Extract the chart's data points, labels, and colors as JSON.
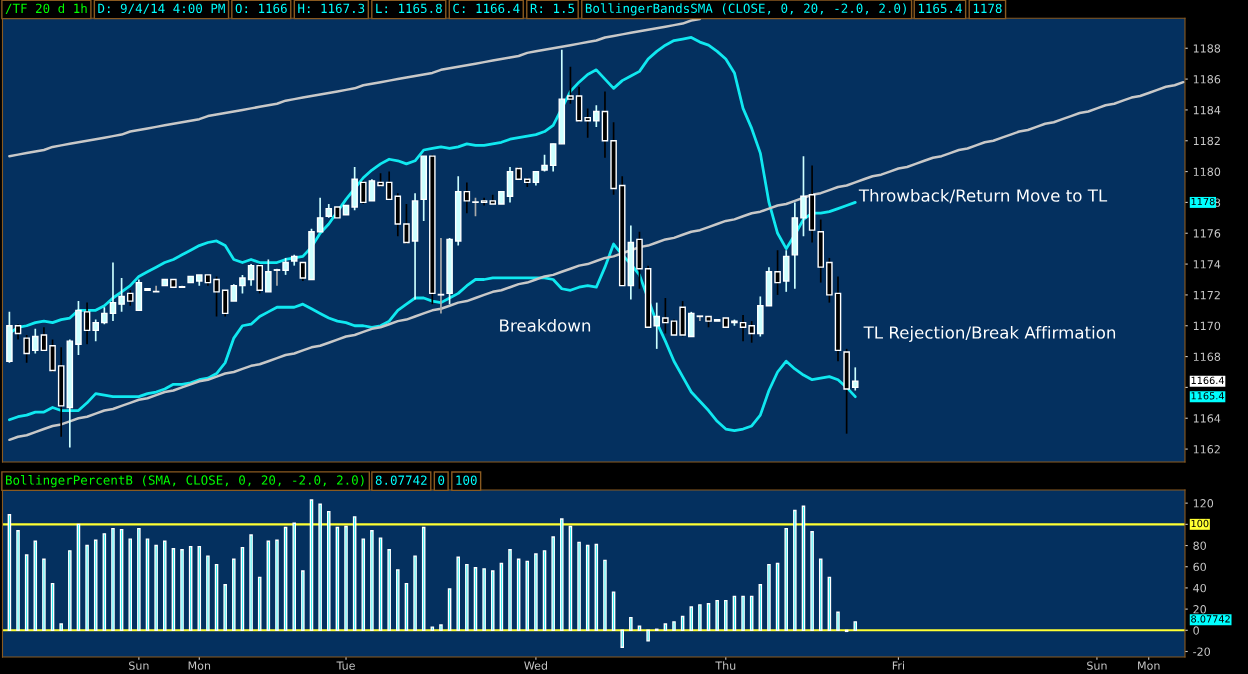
{
  "chart_data": [
    {
      "type": "candlestick",
      "annotations": [
        "/TF 20 d 1h",
        "D: 9/4/14 4:00 PM",
        "O: 1166",
        "H: 1167.3",
        "L: 1165.8",
        "C: 1166.4",
        "R: 1.5",
        "BollingerBandsSMA (CLOSE, 0, 20, -2.0, 2.0)",
        "1165.4",
        "1178",
        "Breakdown",
        "Throwback/Return Move to TL",
        "TL Rejection/Break Affirmation",
        "1178",
        "1166.4",
        "1165.4"
      ],
      "categories": [
        null,
        null,
        null,
        null,
        null,
        null,
        null,
        null,
        null,
        null,
        null,
        null,
        null,
        null,
        null,
        null,
        null,
        null,
        null,
        null,
        null,
        null,
        null,
        null,
        null,
        null,
        null,
        null,
        null,
        null,
        null,
        null,
        null,
        null,
        null,
        null,
        null,
        null,
        null,
        null,
        null,
        null,
        null,
        null,
        null,
        null,
        null,
        null,
        null,
        null,
        null,
        null,
        null,
        null,
        null,
        null,
        null,
        null,
        null,
        null,
        null,
        null,
        null,
        null,
        null,
        null,
        null,
        null,
        null,
        null,
        null,
        null,
        null,
        null,
        null,
        null,
        null,
        null,
        null,
        null,
        null,
        null,
        null,
        null,
        null,
        null,
        null,
        null,
        null,
        null,
        null,
        null,
        null,
        null,
        null,
        null,
        null,
        null,
        null,
        null,
        null,
        null,
        null,
        null,
        null,
        null,
        null,
        null,
        null,
        null,
        null,
        null,
        null,
        null,
        null,
        null,
        null,
        null,
        null,
        null,
        null,
        null,
        null,
        null,
        null,
        null,
        null,
        null,
        null,
        null,
        null,
        null,
        null,
        null,
        null,
        null,
        null
      ],
      "ohlc": [
        [
          1167.7,
          1170.9,
          1167.6,
          1170.0
        ],
        [
          1170.0,
          1170.1,
          1169.1,
          1169.5
        ],
        [
          1169.2,
          1169.4,
          1167.6,
          1168.2
        ],
        [
          1168.4,
          1169.8,
          1168.2,
          1169.3
        ],
        [
          1169.4,
          1169.9,
          1168.4,
          1168.4
        ],
        [
          1168.7,
          1169.1,
          1167.0,
          1167.1
        ],
        [
          1167.4,
          1168.6,
          1162.8,
          1164.8
        ],
        [
          1164.7,
          1169.1,
          1162.1,
          1169.0
        ],
        [
          1168.8,
          1171.6,
          1168.1,
          1171.0
        ],
        [
          1170.9,
          1171.5,
          1168.8,
          1169.7
        ],
        [
          1169.7,
          1170.4,
          1169.0,
          1170.2
        ],
        [
          1170.2,
          1171.2,
          1170.1,
          1170.8
        ],
        [
          1170.8,
          1174.1,
          1170.3,
          1171.5
        ],
        [
          1171.4,
          1173.1,
          1170.9,
          1171.9
        ],
        [
          1172.1,
          1172.3,
          1171.3,
          1171.6
        ],
        [
          1171.0,
          1173.0,
          1171.0,
          1172.8
        ],
        [
          1172.3,
          1172.4,
          1172.3,
          1172.4
        ],
        [
          1172.2,
          1172.6,
          1172.2,
          1172.2
        ],
        [
          1172.6,
          1173.0,
          1172.6,
          1173.0
        ],
        [
          1173.0,
          1173.0,
          1172.5,
          1172.5
        ],
        [
          1172.5,
          1172.6,
          1172.5,
          1172.5
        ],
        [
          1172.8,
          1173.2,
          1172.8,
          1173.2
        ],
        [
          1172.9,
          1173.3,
          1172.6,
          1173.3
        ],
        [
          1173.3,
          1173.3,
          1172.6,
          1172.8
        ],
        [
          1173.0,
          1173.2,
          1170.6,
          1172.2
        ],
        [
          1172.3,
          1172.3,
          1170.6,
          1170.8
        ],
        [
          1171.6,
          1172.7,
          1171.6,
          1172.6
        ],
        [
          1172.6,
          1173.3,
          1172.1,
          1173.1
        ],
        [
          1173.0,
          1174.0,
          1172.6,
          1173.9
        ],
        [
          1173.9,
          1174.0,
          1172.1,
          1172.3
        ],
        [
          1172.2,
          1174.3,
          1172.2,
          1173.5
        ],
        [
          1173.6,
          1173.7,
          1172.6,
          1173.6
        ],
        [
          1173.6,
          1174.4,
          1173.3,
          1174.1
        ],
        [
          1174.2,
          1174.6,
          1173.9,
          1174.5
        ],
        [
          1174.1,
          1174.1,
          1172.9,
          1173.1
        ],
        [
          1173.0,
          1176.3,
          1173.0,
          1176.1
        ],
        [
          1176.1,
          1178.3,
          1176.1,
          1177.0
        ],
        [
          1177.1,
          1177.9,
          1177.0,
          1177.6
        ],
        [
          1177.7,
          1177.7,
          1177.0,
          1177.0
        ],
        [
          1177.2,
          1177.8,
          1177.2,
          1177.8
        ],
        [
          1177.7,
          1180.3,
          1177.5,
          1179.5
        ],
        [
          1179.3,
          1179.4,
          1177.9,
          1178.0
        ],
        [
          1178.1,
          1179.5,
          1178.1,
          1179.4
        ],
        [
          1179.3,
          1179.9,
          1179.0,
          1179.1
        ],
        [
          1179.3,
          1180.0,
          1178.2,
          1178.2
        ],
        [
          1178.4,
          1178.6,
          1175.8,
          1176.6
        ],
        [
          1176.6,
          1177.9,
          1175.3,
          1175.4
        ],
        [
          1175.5,
          1178.6,
          1171.7,
          1178.1
        ],
        [
          1178.2,
          1181.0,
          1176.8,
          1181.0
        ],
        [
          1181.0,
          1181.1,
          1171.4,
          1172.1
        ],
        [
          1172.0,
          1175.7,
          1170.8,
          1172.0
        ],
        [
          1172.1,
          1175.7,
          1171.4,
          1175.6
        ],
        [
          1175.5,
          1179.7,
          1175.2,
          1178.7
        ],
        [
          1178.7,
          1179.3,
          1177.3,
          1178.1
        ],
        [
          1178.0,
          1178.3,
          1177.1,
          1178.0
        ],
        [
          1178.1,
          1178.3,
          1177.8,
          1178.0
        ],
        [
          1178.1,
          1178.5,
          1177.9,
          1177.9
        ],
        [
          1177.9,
          1178.7,
          1177.9,
          1178.7
        ],
        [
          1178.4,
          1180.3,
          1178.0,
          1180.0
        ],
        [
          1180.2,
          1180.3,
          1179.5,
          1179.5
        ],
        [
          1179.5,
          1179.6,
          1179.0,
          1179.3
        ],
        [
          1179.3,
          1180.0,
          1179.1,
          1180.0
        ],
        [
          1180.1,
          1181.1,
          1180.0,
          1180.4
        ],
        [
          1180.4,
          1181.8,
          1180.0,
          1181.8
        ],
        [
          1181.8,
          1187.9,
          1181.8,
          1184.7
        ],
        [
          1184.9,
          1186.8,
          1184.4,
          1184.7
        ],
        [
          1184.9,
          1185.5,
          1183.2,
          1183.3
        ],
        [
          1183.5,
          1184.1,
          1182.2,
          1183.3
        ],
        [
          1183.3,
          1184.3,
          1182.9,
          1183.9
        ],
        [
          1183.9,
          1185.2,
          1180.9,
          1182.0
        ],
        [
          1182.0,
          1183.2,
          1178.5,
          1178.9
        ],
        [
          1179.1,
          1179.7,
          1172.6,
          1172.6
        ],
        [
          1172.6,
          1176.5,
          1171.7,
          1175.4
        ],
        [
          1175.6,
          1176.1,
          1172.4,
          1173.7
        ],
        [
          1173.7,
          1173.9,
          1169.9,
          1169.9
        ],
        [
          1170.0,
          1171.5,
          1168.5,
          1170.6
        ],
        [
          1170.5,
          1171.8,
          1169.5,
          1170.2
        ],
        [
          1170.3,
          1170.4,
          1169.4,
          1169.4
        ],
        [
          1171.2,
          1171.6,
          1169.3,
          1169.4
        ],
        [
          1169.3,
          1170.9,
          1169.3,
          1170.8
        ],
        [
          1170.6,
          1170.6,
          1170.3,
          1170.6
        ],
        [
          1170.6,
          1170.6,
          1169.9,
          1170.3
        ],
        [
          1170.3,
          1170.4,
          1170.3,
          1170.4
        ],
        [
          1170.5,
          1170.5,
          1169.9,
          1169.9
        ],
        [
          1170.2,
          1170.4,
          1170.0,
          1170.3
        ],
        [
          1170.2,
          1170.7,
          1169.0,
          1169.9
        ],
        [
          1170.0,
          1170.3,
          1168.9,
          1169.5
        ],
        [
          1169.5,
          1171.9,
          1169.3,
          1171.3
        ],
        [
          1171.3,
          1173.8,
          1171.3,
          1173.5
        ],
        [
          1173.5,
          1174.9,
          1172.0,
          1172.8
        ],
        [
          1172.9,
          1174.9,
          1172.2,
          1174.5
        ],
        [
          1174.6,
          1178.0,
          1172.4,
          1177.0
        ],
        [
          1177.0,
          1181.0,
          1175.8,
          1178.4
        ],
        [
          1178.5,
          1180.4,
          1175.4,
          1176.2
        ],
        [
          1176.1,
          1176.9,
          1172.8,
          1173.8
        ],
        [
          1174.1,
          1174.4,
          1171.5,
          1172.0
        ],
        [
          1172.1,
          1173.2,
          1167.7,
          1168.4
        ],
        [
          1168.3,
          1168.5,
          1163.0,
          1165.9
        ],
        [
          1166,
          1167.3,
          1165.8,
          1166.4
        ],
        null,
        null,
        null,
        null,
        null,
        null,
        null,
        null,
        null,
        null,
        null,
        null,
        null,
        null,
        null,
        null,
        null,
        null,
        null,
        null,
        null,
        null,
        null,
        null,
        null,
        null,
        null,
        null,
        null,
        null,
        null,
        null,
        null,
        null,
        null,
        null,
        null,
        null
      ],
      "series": [
        {
          "type": "line",
          "color": "#10e8f0",
          "values": [
            1169.5,
            1169.9,
            1170.0,
            1170.2,
            1170.3,
            1170.2,
            1170.4,
            1170.5,
            1171.0,
            1171.0,
            1171.0,
            1171.3,
            1171.8,
            1172.2,
            1172.6,
            1173.2,
            1173.5,
            1173.8,
            1174.1,
            1174.3,
            1174.6,
            1174.9,
            1175.2,
            1175.4,
            1175.5,
            1175.2,
            1174.3,
            1174.1,
            1174.3,
            1174.1,
            1174.1,
            1174.1,
            1174.3,
            1174.4,
            1174.5,
            1175.1,
            1176.0,
            1176.6,
            1177.4,
            1178.2,
            1178.9,
            1179.6,
            1180.1,
            1180.5,
            1180.8,
            1180.7,
            1180.5,
            1180.7,
            1181.4,
            1181.5,
            1181.6,
            1181.5,
            1181.6,
            1181.8,
            1181.7,
            1181.7,
            1181.8,
            1181.9,
            1182.1,
            1182.2,
            1182.3,
            1182.4,
            1182.6,
            1183.0,
            null,
            1185.2,
            1185.8,
            1186.3,
            1186.6,
            1186.0,
            1185.4,
            1185.9,
            1186.2,
            1186.5,
            1187.3,
            1187.8,
            1188.2,
            1188.5,
            1188.6,
            1188.7,
            1188.4,
            1188.2,
            1187.8,
            1187.3,
            1186.4,
            1184.1,
            1182.8,
            1181.2,
            1178.0,
            1176.0,
            1175.0,
            1175.9,
            1176.9,
            1177.3,
            1177.3,
            1177.4,
            1177.6,
            1177.8,
            1178.0,
            null,
            null,
            null,
            null,
            null,
            null,
            null,
            null,
            null,
            null,
            null,
            null,
            null,
            null,
            null,
            null,
            null,
            null,
            null,
            null,
            null,
            null,
            null,
            null,
            null,
            null,
            null,
            null,
            null,
            null,
            null,
            null,
            null,
            null,
            null,
            null,
            null,
            null
          ]
        },
        {
          "type": "line",
          "color": "#10e8f0",
          "values": [
            1163.9,
            1164.1,
            1164.2,
            1164.4,
            1164.4,
            1164.7,
            1164.5,
            1164.5,
            1164.5,
            1165.0,
            1165.6,
            1165.5,
            1165.4,
            1165.4,
            1165.4,
            1165.4,
            1165.6,
            1165.7,
            1165.9,
            1166.2,
            1166.2,
            1166.3,
            1166.5,
            1166.6,
            1166.9,
            1167.6,
            1169.2,
            1170.0,
            1170.1,
            1170.6,
            1170.9,
            1171.2,
            1171.2,
            1171.2,
            1171.4,
            1171.1,
            1170.8,
            1170.5,
            1170.3,
            1170.2,
            1170.0,
            1170.0,
            1169.9,
            1170.0,
            1170.3,
            1171.0,
            1171.4,
            1171.8,
            1171.8,
            1171.6,
            1171.5,
            1171.8,
            1172.1,
            1172.6,
            1173.0,
            1173.0,
            1173.1,
            1173.1,
            1173.1,
            1173.1,
            1173.1,
            1173.1,
            1173.1,
            1173.0,
            1172.4,
            1172.3,
            1172.5,
            1172.6,
            1172.5,
            1173.8,
            1175.3,
            1174.6,
            1174.0,
            1173.3,
            null,
            1170.2,
            1169.0,
            1167.7,
            1166.7,
            1165.7,
            1165.1,
            1164.5,
            1163.8,
            1163.3,
            1163.2,
            1163.3,
            1163.5,
            1164.2,
            1165.8,
            1167.0,
            1167.7,
            1167.2,
            1166.8,
            1166.5,
            1166.6,
            1166.7,
            1166.5,
            1166.0,
            1165.4,
            null,
            null,
            null,
            null,
            null,
            null,
            null,
            null,
            null,
            null,
            null,
            null,
            null,
            null,
            null,
            null,
            null,
            null,
            null,
            null,
            null,
            null,
            null,
            null,
            null,
            null,
            null,
            null,
            null,
            null,
            null,
            null,
            null,
            null,
            null,
            null,
            null,
            null
          ]
        },
        {
          "type": "line",
          "color": "#c8c8c8",
          "values": [
            1181.0,
            1181.1,
            1181.2,
            1181.3,
            1181.4,
            1181.6,
            1181.7,
            1181.8,
            1181.9,
            1182.0,
            1182.1,
            1182.2,
            1182.3,
            1182.4,
            1182.6,
            1182.7,
            1182.8,
            1182.9,
            1183.0,
            1183.1,
            1183.2,
            1183.3,
            1183.4,
            1183.6,
            1183.7,
            1183.8,
            1183.9,
            1184.0,
            1184.1,
            1184.2,
            1184.3,
            1184.4,
            1184.6,
            1184.7,
            1184.8,
            1184.9,
            1185.0,
            1185.1,
            1185.2,
            1185.3,
            1185.4,
            1185.6,
            1185.7,
            1185.8,
            1185.9,
            1186.0,
            1186.1,
            1186.2,
            1186.3,
            1186.4,
            1186.6,
            1186.7,
            1186.8,
            1186.9,
            1187.0,
            1187.1,
            1187.2,
            1187.3,
            1187.4,
            1187.5,
            1187.7,
            1187.8,
            1187.9,
            1188.0,
            1188.1,
            1188.2,
            1188.3,
            1188.4,
            1188.5,
            1188.7,
            1188.8,
            1188.9,
            1189.0,
            1189.1,
            1189.2,
            1189.3,
            1189.4,
            1189.5,
            1189.6,
            1189.8,
            1189.9,
            null,
            null,
            null,
            null,
            null,
            null,
            null,
            null,
            null,
            null,
            null,
            null,
            null,
            null,
            null,
            null,
            null,
            null,
            null,
            null,
            null,
            null,
            null,
            null,
            null,
            null,
            null,
            null,
            null,
            null,
            null,
            null,
            null,
            null,
            null,
            null,
            null,
            null,
            null,
            null,
            null,
            null,
            null,
            null,
            null,
            null,
            null,
            null,
            null,
            null,
            null,
            null,
            null,
            null,
            null,
            null
          ]
        },
        {
          "type": "line",
          "color": "#c8c8c8",
          "values": [
            1162.6,
            1162.8,
            1162.9,
            1163.1,
            1163.3,
            1163.5,
            1163.6,
            1163.8,
            1164.0,
            1164.1,
            1164.3,
            1164.5,
            1164.6,
            1164.8,
            1165.0,
            1165.2,
            1165.3,
            1165.5,
            1165.7,
            1165.8,
            1166.0,
            1166.2,
            1166.4,
            1166.5,
            1166.7,
            1166.9,
            1167.0,
            1167.2,
            1167.4,
            1167.5,
            1167.7,
            1167.9,
            1168.1,
            1168.2,
            1168.4,
            1168.6,
            1168.7,
            1168.9,
            1169.1,
            1169.3,
            1169.4,
            1169.6,
            1169.8,
            1169.9,
            1170.1,
            1170.3,
            1170.4,
            1170.6,
            1170.8,
            1171.0,
            1171.1,
            1171.3,
            1171.5,
            1171.6,
            1171.8,
            1172.0,
            1172.2,
            1172.3,
            1172.5,
            1172.7,
            1172.8,
            1173.0,
            1173.2,
            1173.3,
            1173.5,
            1173.7,
            1173.9,
            1174.0,
            1174.2,
            1174.4,
            1174.5,
            1174.7,
            1174.9,
            1175.1,
            1175.2,
            1175.4,
            1175.6,
            1175.7,
            1175.9,
            1176.1,
            1176.2,
            1176.4,
            1176.6,
            1176.8,
            1176.9,
            1177.1,
            1177.3,
            1177.4,
            1177.6,
            1177.8,
            1177.9,
            1178.1,
            1178.3,
            1178.5,
            1178.6,
            1178.8,
            1179.0,
            1179.1,
            1179.3,
            1179.5,
            1179.7,
            1179.8,
            1180.0,
            1180.2,
            1180.3,
            1180.5,
            1180.7,
            1180.9,
            1181.0,
            1181.2,
            1181.4,
            1181.5,
            1181.7,
            1181.9,
            1182.0,
            1182.2,
            1182.4,
            1182.6,
            1182.7,
            1182.9,
            1183.1,
            1183.2,
            1183.4,
            1183.6,
            1183.8,
            1183.9,
            1184.1,
            1184.3,
            1184.4,
            1184.6,
            1184.8,
            1184.9,
            1185.1,
            1185.3,
            1185.5,
            1185.6,
            1185.8
          ]
        }
      ],
      "ylim": [
        1161.16,
        1189.95
      ],
      "yticks": [
        1162,
        1164,
        {
          "value": 1166,
          "label": null
        },
        1168,
        1170,
        1172,
        1174,
        1176,
        1178,
        1180,
        1182,
        1184,
        1186,
        1188
      ],
      "tick_labels": "y",
      "grid": false,
      "legend": false
    },
    {
      "type": "bar",
      "annotations": [
        "BollingerPercentB (SMA, CLOSE, 0, 20, -2.0, 2.0)",
        "8.07742",
        "0",
        "100",
        "100",
        "8.07742"
      ],
      "categories": [
        null,
        null,
        null,
        null,
        null,
        null,
        null,
        null,
        null,
        null,
        null,
        null,
        null,
        null,
        null,
        "Sun",
        null,
        null,
        null,
        null,
        null,
        null,
        "Mon",
        null,
        null,
        null,
        null,
        null,
        null,
        null,
        null,
        null,
        null,
        null,
        null,
        null,
        null,
        null,
        null,
        "Tue",
        null,
        null,
        null,
        null,
        null,
        null,
        null,
        null,
        null,
        null,
        null,
        null,
        null,
        null,
        null,
        null,
        null,
        null,
        null,
        null,
        null,
        "Wed",
        null,
        null,
        null,
        null,
        null,
        null,
        null,
        null,
        null,
        null,
        null,
        null,
        null,
        null,
        null,
        null,
        null,
        null,
        null,
        null,
        null,
        "Thu",
        null,
        null,
        null,
        null,
        null,
        null,
        null,
        null,
        null,
        null,
        null,
        null,
        null,
        null,
        null,
        null,
        null,
        null,
        null,
        "Fri",
        null,
        null,
        null,
        null,
        null,
        null,
        null,
        null,
        null,
        null,
        null,
        null,
        null,
        null,
        null,
        null,
        null,
        null,
        null,
        null,
        null,
        null,
        "Sun",
        null,
        null,
        null,
        null,
        null,
        "Mon",
        null,
        null,
        null,
        null
      ],
      "series": [
        {
          "color": "#00f0f0",
          "values": [
            109,
            94,
            71,
            84,
            67,
            44,
            6,
            75,
            100,
            80,
            85,
            91,
            96,
            95,
            86,
            96,
            86,
            80,
            84,
            77,
            76,
            79,
            79,
            70,
            62,
            43,
            67,
            78,
            90,
            50,
            84,
            85,
            97,
            101,
            56,
            123,
            119,
            112,
            97,
            98,
            107,
            86,
            94,
            87,
            76,
            57,
            44,
            70,
            97,
            3,
            5,
            39,
            69,
            62,
            59,
            58,
            56,
            63,
            76,
            67,
            65,
            72,
            75,
            88,
            105,
            98,
            83,
            80,
            81,
            66,
            36,
            -16,
            12,
            4,
            -10,
            1,
            6,
            8,
            13,
            22,
            24,
            25,
            28,
            28,
            32,
            32,
            32,
            43,
            62,
            63,
            96,
            113,
            117,
            93,
            67,
            50,
            17,
            -1,
            8,
            null,
            null,
            null,
            null,
            null,
            null,
            null,
            null,
            null,
            null,
            null,
            null,
            null,
            null,
            null,
            null,
            null,
            null,
            null,
            null,
            null,
            null,
            null,
            null,
            null,
            null,
            null,
            null,
            null,
            null,
            null,
            null,
            null,
            null,
            null,
            null,
            null,
            null
          ]
        }
      ],
      "ref_lines": [
        {
          "axis": "y",
          "value": 100,
          "color": "#ffff33"
        },
        {
          "axis": "y",
          "value": 0,
          "color": "#ffff33"
        }
      ],
      "ylim": [
        -25.2,
        132.4
      ],
      "yticks": [
        -20,
        0,
        20,
        40,
        60,
        80,
        {
          "value": 100,
          "label": null
        },
        120
      ],
      "grid": false,
      "legend": false
    }
  ]
}
